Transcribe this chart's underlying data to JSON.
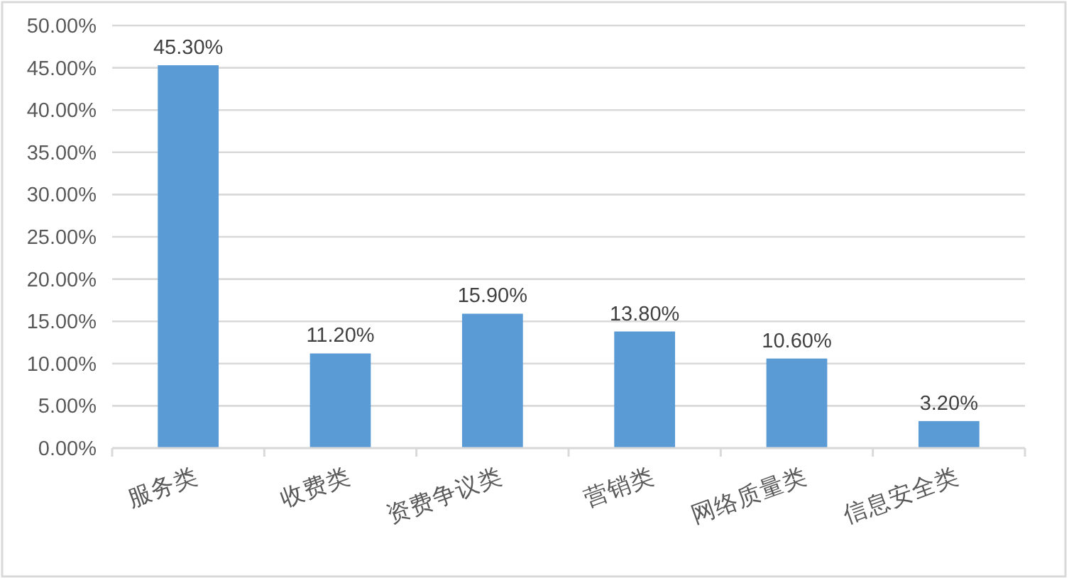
{
  "chart_data": {
    "type": "bar",
    "categories": [
      "服务类",
      "收费类",
      "资费争议类",
      "营销类",
      "网络质量类",
      "信息安全类"
    ],
    "values": [
      45.3,
      11.2,
      15.9,
      13.8,
      10.6,
      3.2
    ],
    "color": "#5b9bd5",
    "value_labels": [
      "45.30%",
      "11.20%",
      "15.90%",
      "13.80%",
      "10.60%",
      "3.20%"
    ],
    "ylim": [
      0,
      50
    ],
    "yticks": [
      {
        "value": 0,
        "label": "0.00%"
      },
      {
        "value": 5,
        "label": "5.00%"
      },
      {
        "value": 10,
        "label": "10.00%"
      },
      {
        "value": 15,
        "label": "15.00%"
      },
      {
        "value": 20,
        "label": "20.00%"
      },
      {
        "value": 25,
        "label": "25.00%"
      },
      {
        "value": 30,
        "label": "30.00%"
      },
      {
        "value": 35,
        "label": "35.00%"
      },
      {
        "value": 40,
        "label": "40.00%"
      },
      {
        "value": 45,
        "label": "45.00%"
      },
      {
        "value": 50,
        "label": "50.00%"
      }
    ],
    "grid": "y"
  }
}
